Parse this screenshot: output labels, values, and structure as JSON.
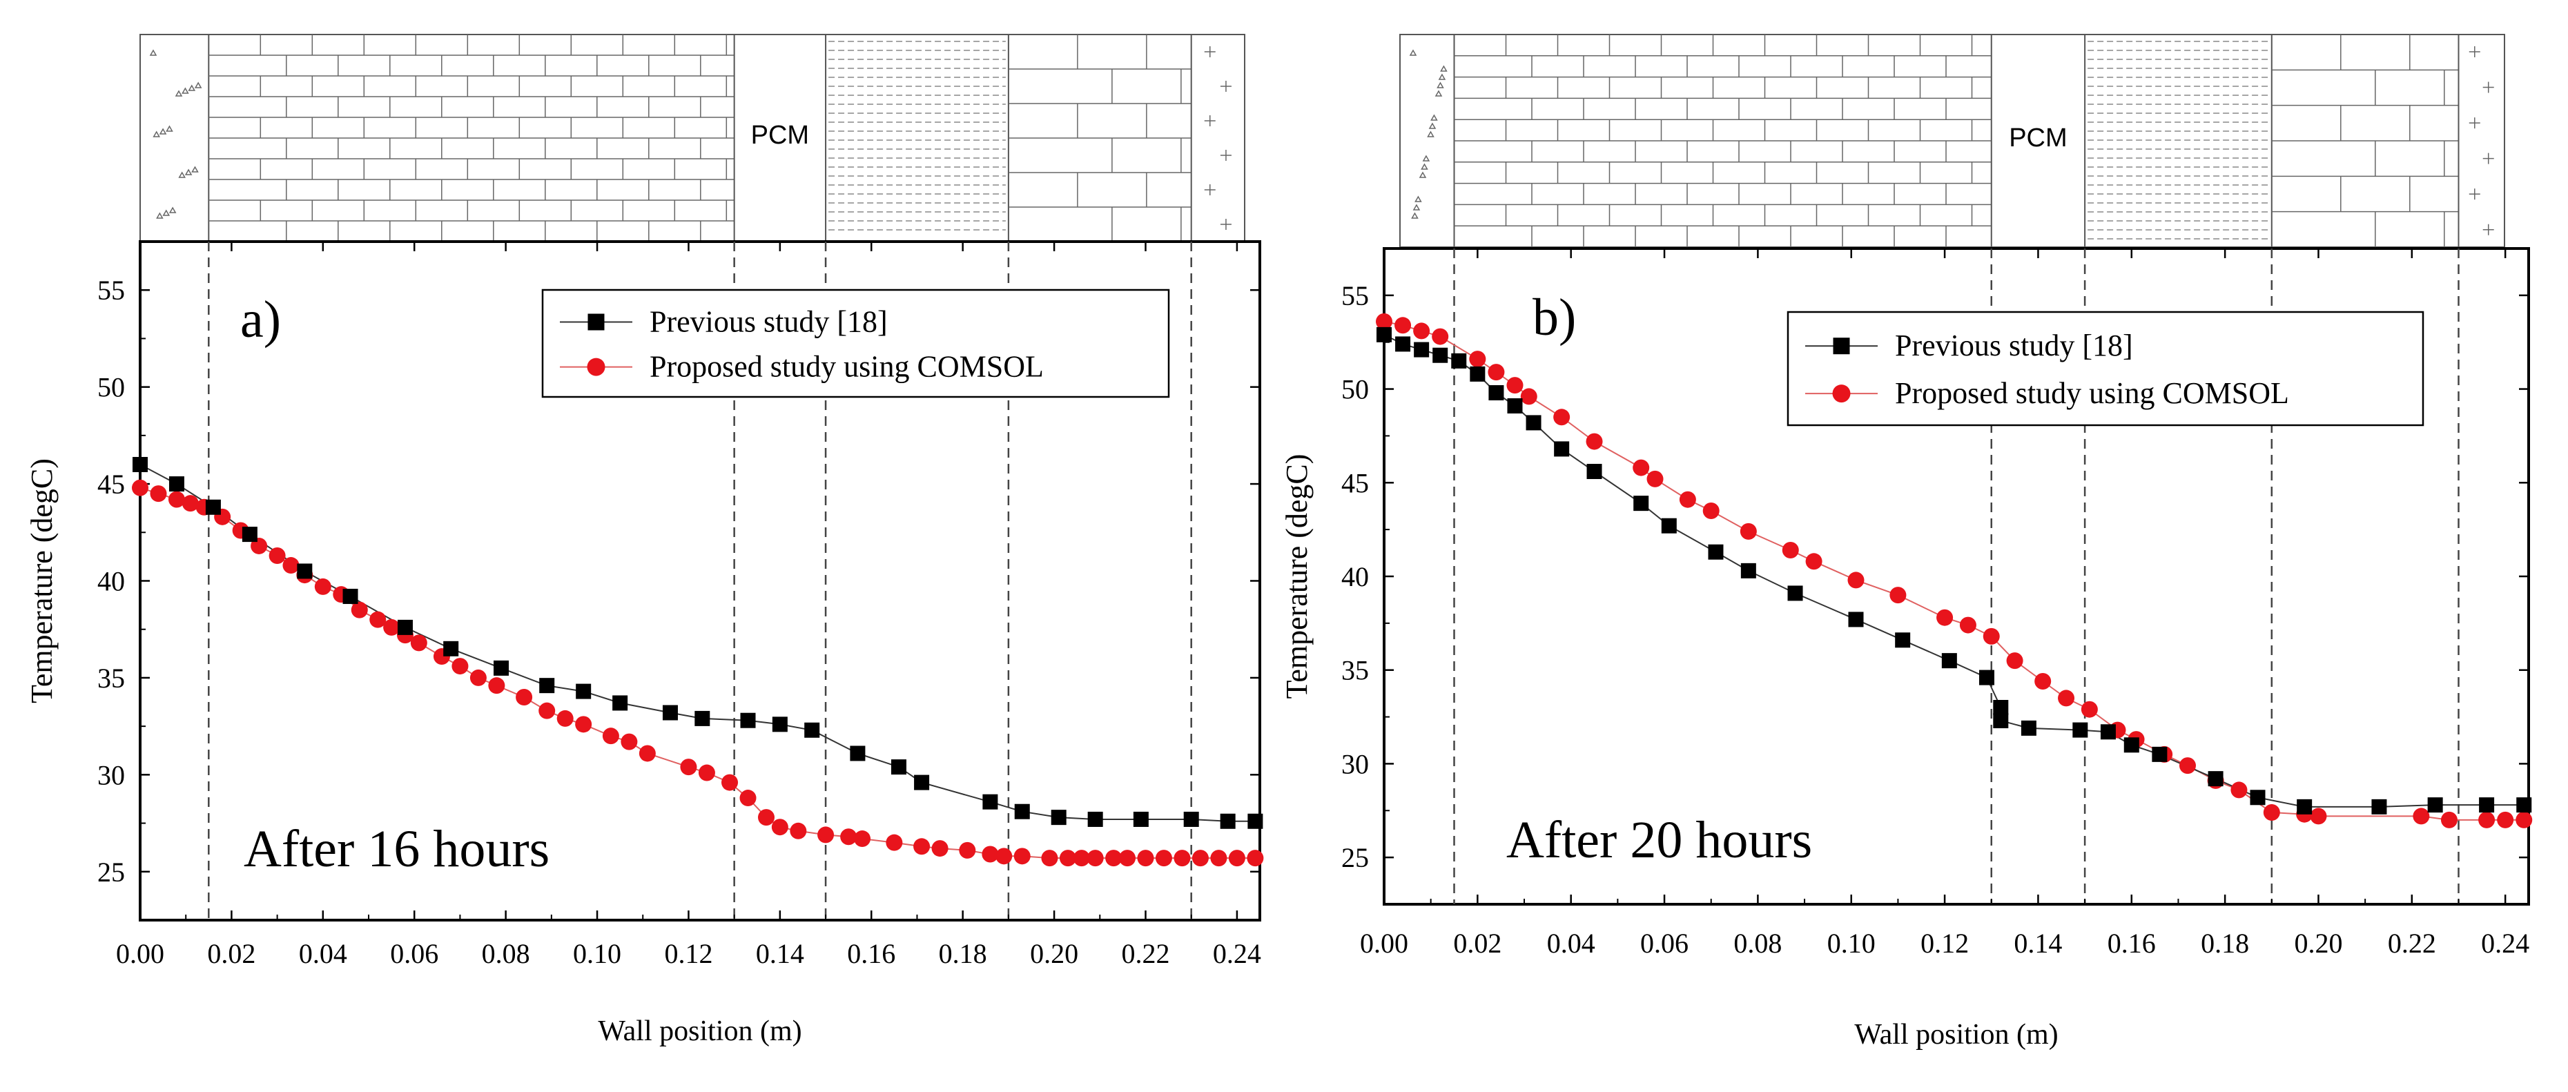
{
  "pcm_label": "PCM",
  "colors": {
    "series_previous": "#000000",
    "series_proposed": "#e8141c",
    "line_proposed": "#e06060",
    "axis": "#000000",
    "dash": "#444444"
  },
  "chart_data": [
    {
      "type": "scatter",
      "panel_label": "a)",
      "annotation": "After 16 hours",
      "xlabel": "Wall position (m)",
      "ylabel": "Temperature (degC)",
      "xlim": [
        0,
        0.245
      ],
      "ylim": [
        22.5,
        57.5
      ],
      "xticks": [
        0.0,
        0.02,
        0.04,
        0.06,
        0.08,
        0.1,
        0.12,
        0.14,
        0.16,
        0.18,
        0.2,
        0.22,
        0.24
      ],
      "xtick_labels": [
        "0.00",
        "0.02",
        "0.04",
        "0.06",
        "0.08",
        "0.10",
        "0.12",
        "0.14",
        "0.16",
        "0.18",
        "0.20",
        "0.22",
        "0.24"
      ],
      "yticks": [
        25,
        30,
        35,
        40,
        45,
        50,
        55
      ],
      "ytick_labels": [
        "25",
        "30",
        "35",
        "40",
        "45",
        "50",
        "55"
      ],
      "layer_boundaries": [
        0.015,
        0.13,
        0.15,
        0.19,
        0.23
      ],
      "legend_position": "top-right",
      "series": [
        {
          "name": "Previous study [18]",
          "marker": "square",
          "points": [
            [
              0.0,
              46.0
            ],
            [
              0.008,
              45.0
            ],
            [
              0.016,
              43.8
            ],
            [
              0.024,
              42.4
            ],
            [
              0.036,
              40.5
            ],
            [
              0.046,
              39.2
            ],
            [
              0.058,
              37.6
            ],
            [
              0.068,
              36.5
            ],
            [
              0.079,
              35.5
            ],
            [
              0.089,
              34.6
            ],
            [
              0.097,
              34.3
            ],
            [
              0.105,
              33.7
            ],
            [
              0.116,
              33.2
            ],
            [
              0.123,
              32.9
            ],
            [
              0.133,
              32.8
            ],
            [
              0.14,
              32.6
            ],
            [
              0.147,
              32.3
            ],
            [
              0.157,
              31.1
            ],
            [
              0.166,
              30.4
            ],
            [
              0.171,
              29.6
            ],
            [
              0.186,
              28.6
            ],
            [
              0.193,
              28.1
            ],
            [
              0.201,
              27.8
            ],
            [
              0.209,
              27.7
            ],
            [
              0.219,
              27.7
            ],
            [
              0.23,
              27.7
            ],
            [
              0.238,
              27.6
            ],
            [
              0.244,
              27.6
            ]
          ]
        },
        {
          "name": "Proposed study using COMSOL",
          "marker": "circle",
          "points": [
            [
              0.0,
              44.8
            ],
            [
              0.004,
              44.5
            ],
            [
              0.008,
              44.2
            ],
            [
              0.011,
              44.0
            ],
            [
              0.014,
              43.8
            ],
            [
              0.018,
              43.3
            ],
            [
              0.022,
              42.6
            ],
            [
              0.026,
              41.8
            ],
            [
              0.03,
              41.3
            ],
            [
              0.033,
              40.8
            ],
            [
              0.036,
              40.3
            ],
            [
              0.04,
              39.7
            ],
            [
              0.044,
              39.3
            ],
            [
              0.048,
              38.5
            ],
            [
              0.052,
              38.0
            ],
            [
              0.055,
              37.6
            ],
            [
              0.058,
              37.2
            ],
            [
              0.061,
              36.8
            ],
            [
              0.066,
              36.1
            ],
            [
              0.07,
              35.6
            ],
            [
              0.074,
              35.0
            ],
            [
              0.078,
              34.6
            ],
            [
              0.084,
              34.0
            ],
            [
              0.089,
              33.3
            ],
            [
              0.093,
              32.9
            ],
            [
              0.097,
              32.6
            ],
            [
              0.103,
              32.0
            ],
            [
              0.107,
              31.7
            ],
            [
              0.111,
              31.1
            ],
            [
              0.12,
              30.4
            ],
            [
              0.124,
              30.1
            ],
            [
              0.129,
              29.6
            ],
            [
              0.133,
              28.8
            ],
            [
              0.137,
              27.8
            ],
            [
              0.14,
              27.3
            ],
            [
              0.144,
              27.1
            ],
            [
              0.15,
              26.9
            ],
            [
              0.155,
              26.8
            ],
            [
              0.158,
              26.7
            ],
            [
              0.165,
              26.5
            ],
            [
              0.171,
              26.3
            ],
            [
              0.175,
              26.2
            ],
            [
              0.181,
              26.1
            ],
            [
              0.186,
              25.9
            ],
            [
              0.189,
              25.8
            ],
            [
              0.193,
              25.8
            ],
            [
              0.199,
              25.7
            ],
            [
              0.203,
              25.7
            ],
            [
              0.206,
              25.7
            ],
            [
              0.209,
              25.7
            ],
            [
              0.213,
              25.7
            ],
            [
              0.216,
              25.7
            ],
            [
              0.22,
              25.7
            ],
            [
              0.224,
              25.7
            ],
            [
              0.228,
              25.7
            ],
            [
              0.232,
              25.7
            ],
            [
              0.236,
              25.7
            ],
            [
              0.24,
              25.7
            ],
            [
              0.244,
              25.7
            ]
          ]
        }
      ]
    },
    {
      "type": "scatter",
      "panel_label": "b)",
      "annotation": "After 20 hours",
      "xlabel": "Wall position (m)",
      "ylabel": "Temperature (degC)",
      "xlim": [
        0,
        0.245
      ],
      "ylim": [
        22.5,
        57.5
      ],
      "xticks": [
        0.0,
        0.02,
        0.04,
        0.06,
        0.08,
        0.1,
        0.12,
        0.14,
        0.16,
        0.18,
        0.2,
        0.22,
        0.24
      ],
      "xtick_labels": [
        "0.00",
        "0.02",
        "0.04",
        "0.06",
        "0.08",
        "0.10",
        "0.12",
        "0.14",
        "0.16",
        "0.18",
        "0.20",
        "0.22",
        "0.24"
      ],
      "yticks": [
        25,
        30,
        35,
        40,
        45,
        50,
        55
      ],
      "ytick_labels": [
        "25",
        "30",
        "35",
        "40",
        "45",
        "50",
        "55"
      ],
      "layer_boundaries": [
        0.015,
        0.13,
        0.15,
        0.19,
        0.23
      ],
      "legend_position": "top-right",
      "series": [
        {
          "name": "Previous study [18]",
          "marker": "square",
          "points": [
            [
              0.0,
              52.9
            ],
            [
              0.004,
              52.4
            ],
            [
              0.008,
              52.1
            ],
            [
              0.012,
              51.8
            ],
            [
              0.016,
              51.5
            ],
            [
              0.02,
              50.8
            ],
            [
              0.024,
              49.8
            ],
            [
              0.028,
              49.1
            ],
            [
              0.032,
              48.2
            ],
            [
              0.038,
              46.8
            ],
            [
              0.045,
              45.6
            ],
            [
              0.055,
              43.9
            ],
            [
              0.061,
              42.7
            ],
            [
              0.071,
              41.3
            ],
            [
              0.078,
              40.3
            ],
            [
              0.088,
              39.1
            ],
            [
              0.101,
              37.7
            ],
            [
              0.111,
              36.6
            ],
            [
              0.121,
              35.5
            ],
            [
              0.129,
              34.6
            ],
            [
              0.132,
              33.0
            ],
            [
              0.132,
              32.3
            ],
            [
              0.138,
              31.9
            ],
            [
              0.149,
              31.8
            ],
            [
              0.155,
              31.7
            ],
            [
              0.16,
              31.0
            ],
            [
              0.166,
              30.5
            ],
            [
              0.178,
              29.2
            ],
            [
              0.187,
              28.2
            ],
            [
              0.197,
              27.7
            ],
            [
              0.213,
              27.7
            ],
            [
              0.225,
              27.8
            ],
            [
              0.236,
              27.8
            ],
            [
              0.244,
              27.8
            ]
          ]
        },
        {
          "name": "Proposed study using COMSOL",
          "marker": "circle",
          "points": [
            [
              0.0,
              53.6
            ],
            [
              0.004,
              53.4
            ],
            [
              0.008,
              53.1
            ],
            [
              0.012,
              52.8
            ],
            [
              0.02,
              51.6
            ],
            [
              0.024,
              50.9
            ],
            [
              0.028,
              50.2
            ],
            [
              0.031,
              49.6
            ],
            [
              0.038,
              48.5
            ],
            [
              0.045,
              47.2
            ],
            [
              0.055,
              45.8
            ],
            [
              0.058,
              45.2
            ],
            [
              0.065,
              44.1
            ],
            [
              0.07,
              43.5
            ],
            [
              0.078,
              42.4
            ],
            [
              0.087,
              41.4
            ],
            [
              0.092,
              40.8
            ],
            [
              0.101,
              39.8
            ],
            [
              0.11,
              39.0
            ],
            [
              0.12,
              37.8
            ],
            [
              0.125,
              37.4
            ],
            [
              0.13,
              36.8
            ],
            [
              0.135,
              35.5
            ],
            [
              0.141,
              34.4
            ],
            [
              0.146,
              33.5
            ],
            [
              0.151,
              32.9
            ],
            [
              0.157,
              31.8
            ],
            [
              0.161,
              31.3
            ],
            [
              0.167,
              30.5
            ],
            [
              0.172,
              29.9
            ],
            [
              0.178,
              29.1
            ],
            [
              0.183,
              28.6
            ],
            [
              0.19,
              27.4
            ],
            [
              0.197,
              27.3
            ],
            [
              0.2,
              27.2
            ],
            [
              0.222,
              27.2
            ],
            [
              0.228,
              27.0
            ],
            [
              0.236,
              27.0
            ],
            [
              0.24,
              27.0
            ],
            [
              0.244,
              27.0
            ]
          ]
        }
      ]
    }
  ]
}
